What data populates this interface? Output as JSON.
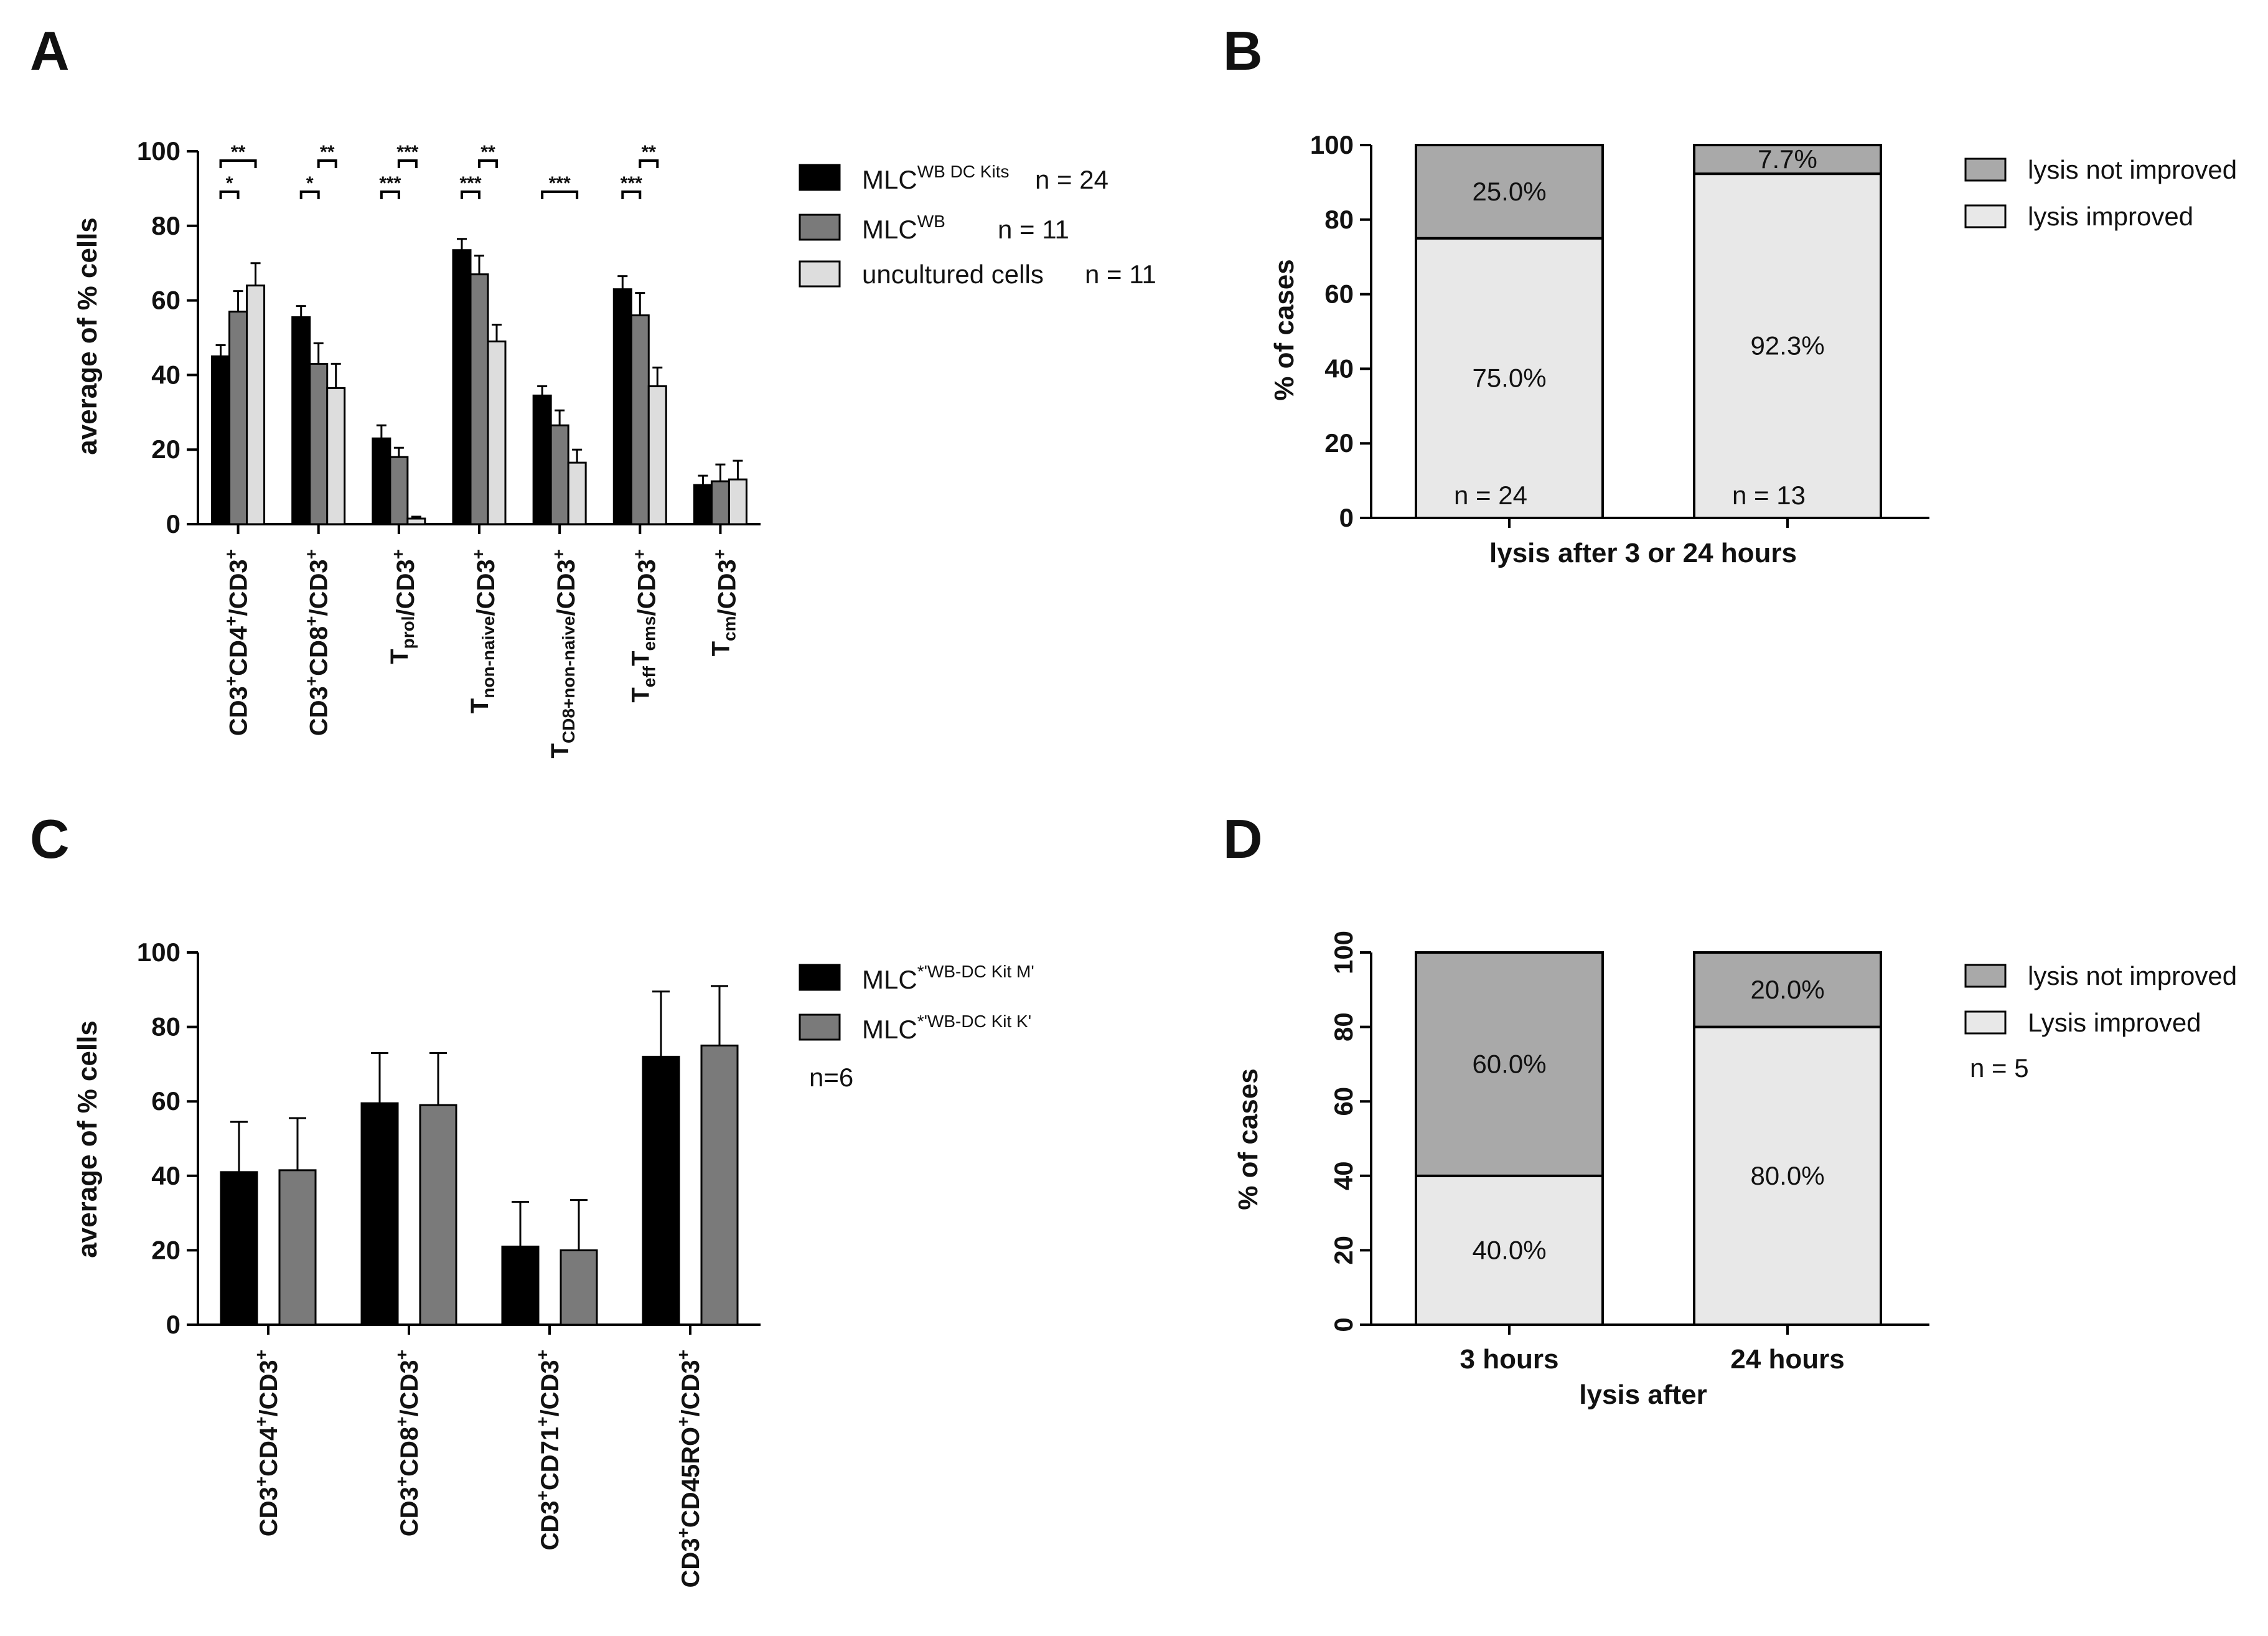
{
  "panels": {
    "A": {
      "label": "A",
      "chart_data": {
        "type": "bar",
        "ylabel": "average of % cells",
        "ylim": [
          0,
          100
        ],
        "yticks": [
          0,
          20,
          40,
          60,
          80,
          100
        ],
        "categories": [
          {
            "base": "CD3",
            "sup": "+",
            "rest": [
              [
                "CD4",
                "+"
              ],
              [
                "/CD3",
                "+"
              ]
            ],
            "label": "CD3+CD4+/CD3+"
          },
          {
            "label": "CD3+CD8+/CD3+"
          },
          {
            "label": "Tprol/CD3+"
          },
          {
            "label": "Tnon-naive/CD3+"
          },
          {
            "label": "TCD8+non-naive/CD3+"
          },
          {
            "label": "TeffTems/CD3+"
          },
          {
            "label": "Tcm/CD3+"
          }
        ],
        "series": [
          {
            "name": "MLCWB DC Kits",
            "legend_base": "MLC",
            "legend_sup": "WB DC Kits",
            "legend_n": "n = 24",
            "color": "#000000",
            "values": [
              45,
              55.5,
              23,
              73.5,
              34.5,
              63,
              10.5
            ],
            "errors": [
              3,
              3,
              3.5,
              3,
              2.5,
              3.5,
              2.5
            ]
          },
          {
            "name": "MLCWB",
            "legend_base": "MLC",
            "legend_sup": "WB",
            "legend_n": "n = 11",
            "color": "#7a7a7a",
            "values": [
              57,
              43,
              18,
              67,
              26.5,
              56,
              11.5
            ],
            "errors": [
              5.5,
              5.5,
              2.5,
              5,
              4,
              6,
              4.5
            ]
          },
          {
            "name": "uncultured cells",
            "legend_base": "uncultured cells",
            "legend_sup": "",
            "legend_n": "n = 11",
            "color": "#dddddd",
            "values": [
              64,
              36.5,
              1.5,
              49,
              16.5,
              37,
              12
            ],
            "errors": [
              6,
              6.5,
              0.5,
              4.5,
              3.5,
              5,
              5
            ]
          }
        ],
        "significance": [
          {
            "category": 0,
            "from": 0,
            "to": 1,
            "label": "*"
          },
          {
            "category": 0,
            "from": 0,
            "to": 2,
            "label": "**"
          },
          {
            "category": 1,
            "from": 0,
            "to": 1,
            "label": "*"
          },
          {
            "category": 1,
            "from": 1,
            "to": 2,
            "label": "**"
          },
          {
            "category": 2,
            "from": 0,
            "to": 1,
            "label": "***"
          },
          {
            "category": 2,
            "from": 1,
            "to": 2,
            "label": "***"
          },
          {
            "category": 3,
            "from": 0,
            "to": 1,
            "label": "***"
          },
          {
            "category": 3,
            "from": 1,
            "to": 2,
            "label": "**"
          },
          {
            "category": 4,
            "from": 0,
            "to": 2,
            "label": "***"
          },
          {
            "category": 5,
            "from": 0,
            "to": 1,
            "label": "***"
          },
          {
            "category": 5,
            "from": 1,
            "to": 2,
            "label": "**"
          }
        ]
      }
    },
    "B": {
      "label": "B",
      "chart_data": {
        "type": "bar",
        "stacked": true,
        "ylabel": "% of cases",
        "xlabel": "lysis after 3 or 24 hours",
        "ylim": [
          0,
          100
        ],
        "yticks": [
          0,
          20,
          40,
          60,
          80,
          100
        ],
        "categories": [
          "",
          ""
        ],
        "series": [
          {
            "name": "lysis improved",
            "color": "#e8e8e8",
            "values": [
              75.0,
              92.3
            ],
            "labels": [
              "75.0%",
              "92.3%"
            ]
          },
          {
            "name": "lysis not improved",
            "color": "#a9a9a9",
            "values": [
              25.0,
              7.7
            ],
            "labels": [
              "25.0%",
              "7.7%"
            ]
          }
        ],
        "n_labels": [
          "n = 24",
          "n = 13"
        ]
      }
    },
    "C": {
      "label": "C",
      "chart_data": {
        "type": "bar",
        "ylabel": "average of % cells",
        "ylim": [
          0,
          100
        ],
        "yticks": [
          0,
          20,
          40,
          60,
          80,
          100
        ],
        "categories": [
          "CD3+CD4+/CD3+",
          "CD3+CD8+/CD3+",
          "CD3+CD71+/CD3+",
          "CD3+CD45RO+/CD3+"
        ],
        "series": [
          {
            "name": "MLC*'WB-DC Kit M'",
            "legend_base": "MLC",
            "legend_sup": "*'WB-DC Kit M'",
            "color": "#000000",
            "values": [
              41,
              59.5,
              21,
              72
            ],
            "errors": [
              13.5,
              13.5,
              12,
              17.5
            ]
          },
          {
            "name": "MLC*'WB-DC Kit K'",
            "legend_base": "MLC",
            "legend_sup": "*'WB-DC Kit K'",
            "color": "#7a7a7a",
            "values": [
              41.5,
              59,
              20,
              75
            ],
            "errors": [
              14,
              14,
              13.5,
              16
            ]
          }
        ],
        "note": "n=6"
      }
    },
    "D": {
      "label": "D",
      "chart_data": {
        "type": "bar",
        "stacked": true,
        "ylabel": "% of cases",
        "xlabel": "lysis after",
        "ylim": [
          0,
          100
        ],
        "yticks": [
          0,
          20,
          40,
          60,
          80,
          100
        ],
        "categories": [
          "3 hours",
          "24 hours"
        ],
        "series": [
          {
            "name": "Lysis improved",
            "color": "#e8e8e8",
            "values": [
              40.0,
              80.0
            ],
            "labels": [
              "40.0%",
              "80.0%"
            ]
          },
          {
            "name": "lysis not improved",
            "color": "#a9a9a9",
            "values": [
              60.0,
              20.0
            ],
            "labels": [
              "60.0%",
              "20.0%"
            ]
          }
        ],
        "note": "n = 5"
      }
    }
  }
}
